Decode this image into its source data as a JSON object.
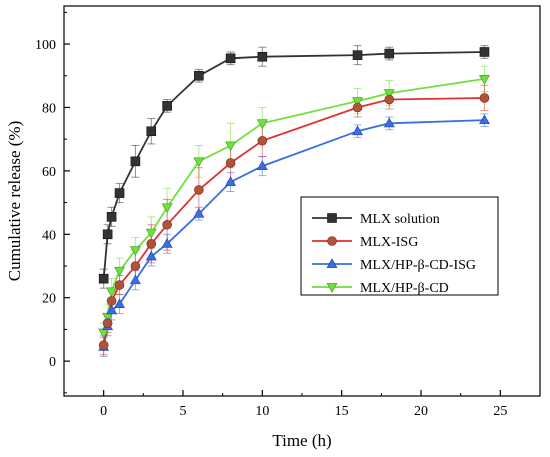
{
  "chart_data": {
    "type": "line",
    "title": "",
    "xlabel": "Time (h)",
    "ylabel": "Cumulative release (%)",
    "xlim": [
      -2.5,
      27.5
    ],
    "ylim": [
      -11,
      112
    ],
    "xticks": [
      0,
      5,
      10,
      15,
      20,
      25
    ],
    "yticks": [
      0,
      20,
      40,
      60,
      80,
      100
    ],
    "xtick_labels": [
      "0",
      "5",
      "10",
      "15",
      "20",
      "25"
    ],
    "ytick_labels": [
      "0",
      "20",
      "40",
      "60",
      "80",
      "100"
    ],
    "grid": false,
    "legend_position": "center-right",
    "series": [
      {
        "name": "MLX solution",
        "color": "#333333",
        "marker": "square",
        "x": [
          0,
          0.25,
          0.5,
          1,
          2,
          3,
          4,
          6,
          8,
          10,
          16,
          18,
          24
        ],
        "y": [
          26,
          40,
          45.5,
          53,
          63,
          72.5,
          80.5,
          90,
          95.5,
          96,
          96.5,
          97,
          97.5
        ],
        "err": [
          3,
          3,
          3,
          3,
          5,
          4,
          2,
          2,
          2,
          3,
          3,
          2,
          2
        ]
      },
      {
        "name": "MLX-ISG",
        "color": "#e0312d",
        "marker": "circle",
        "x": [
          0,
          0.25,
          0.5,
          1,
          2,
          3,
          4,
          6,
          8,
          10,
          16,
          18,
          24
        ],
        "y": [
          5,
          12,
          19,
          24,
          30,
          37,
          43,
          54,
          62.5,
          69.5,
          80,
          82.5,
          83
        ],
        "err": [
          3,
          3,
          3,
          3,
          5,
          6,
          8,
          7,
          6,
          5,
          3,
          3,
          4
        ]
      },
      {
        "name": "MLX/HP-β-CD-ISG",
        "color": "#3a6de0",
        "marker": "triangle-up",
        "x": [
          0,
          0.25,
          0.5,
          1,
          2,
          3,
          4,
          6,
          8,
          10,
          16,
          18,
          24
        ],
        "y": [
          4.5,
          11,
          16,
          18,
          25.5,
          33,
          37,
          46.5,
          56.5,
          61.5,
          72.5,
          75,
          76
        ],
        "err": [
          3,
          3,
          3,
          3,
          3,
          3,
          3,
          2,
          3,
          3,
          2,
          2,
          2
        ]
      },
      {
        "name": "MLX/HP-β-CD",
        "color": "#6fe03c",
        "marker": "triangle-down",
        "x": [
          0,
          0.25,
          0.5,
          1,
          2,
          3,
          4,
          6,
          8,
          10,
          16,
          18,
          24
        ],
        "y": [
          9,
          14,
          22,
          28.5,
          35,
          40.5,
          48.5,
          63,
          68,
          75,
          82,
          84.5,
          89
        ],
        "err": [
          3,
          4,
          4,
          4,
          4,
          5,
          6,
          5,
          7,
          5,
          4,
          4,
          4
        ]
      }
    ]
  }
}
